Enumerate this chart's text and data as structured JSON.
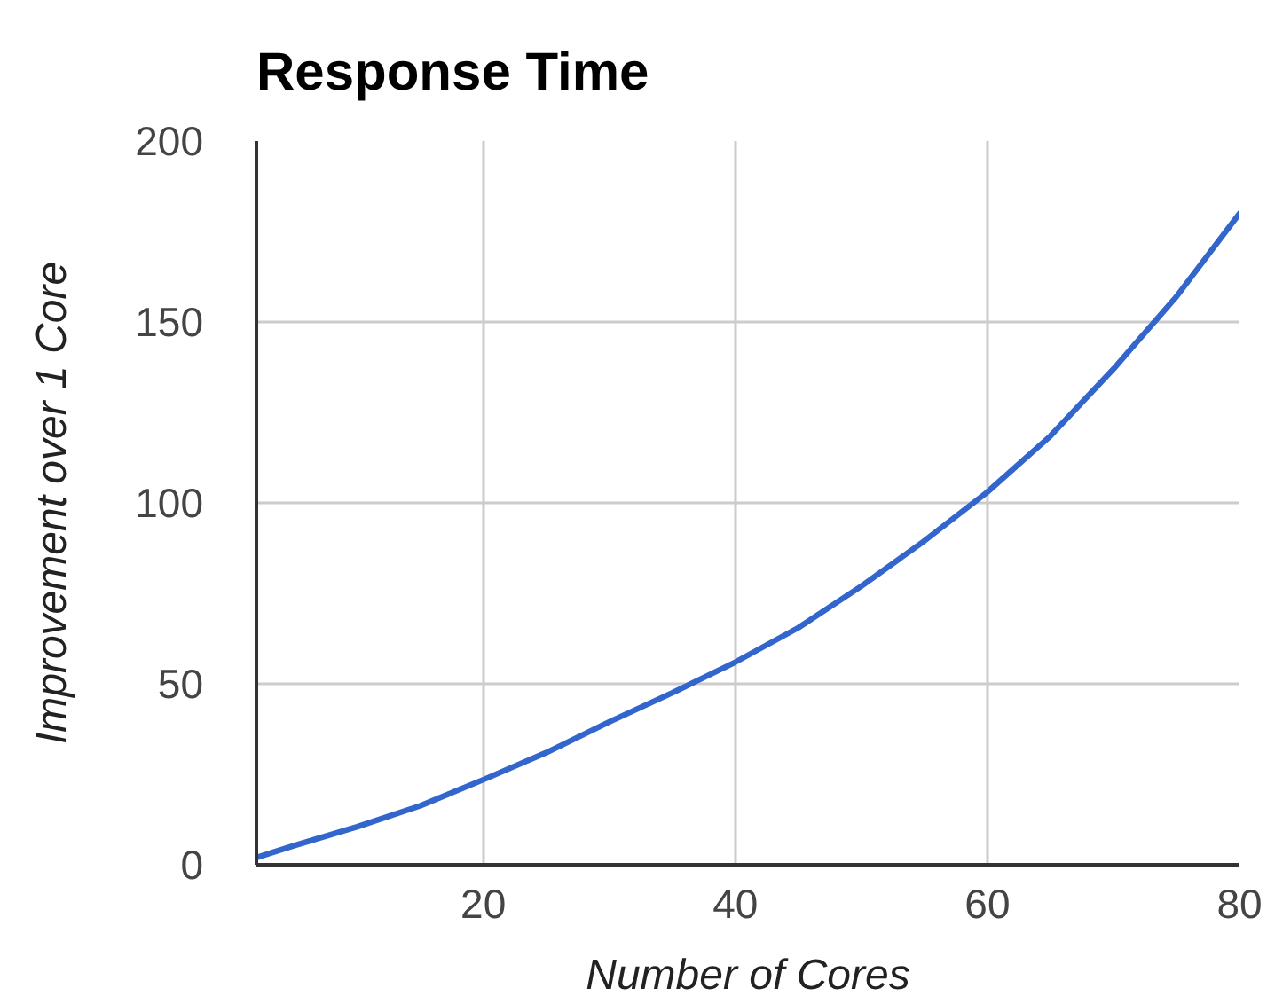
{
  "chart_data": {
    "type": "line",
    "title": "Response Time",
    "xlabel": "Number of Cores",
    "ylabel": "Improvement over 1 Core",
    "x": [
      2,
      5,
      10,
      15,
      20,
      25,
      30,
      35,
      40,
      45,
      50,
      55,
      60,
      65,
      70,
      75,
      80
    ],
    "series": [
      {
        "color": "#3366cc",
        "values": [
          2,
          5.3,
          10.5,
          16.3,
          23.5,
          31,
          39.5,
          47.5,
          56,
          65.5,
          77,
          89.5,
          103,
          118.5,
          137,
          157,
          180
        ]
      }
    ],
    "xlim": [
      2,
      80
    ],
    "ylim": [
      0,
      200
    ],
    "xticks": [
      20,
      40,
      60,
      80
    ],
    "yticks": [
      0,
      50,
      100,
      150,
      200
    ],
    "grid": true,
    "line_style": "solid"
  }
}
